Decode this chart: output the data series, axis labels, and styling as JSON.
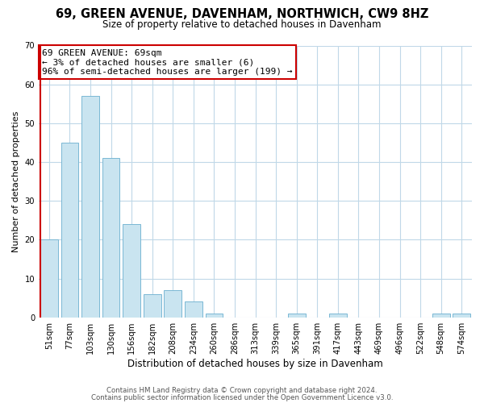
{
  "title": "69, GREEN AVENUE, DAVENHAM, NORTHWICH, CW9 8HZ",
  "subtitle": "Size of property relative to detached houses in Davenham",
  "xlabel": "Distribution of detached houses by size in Davenham",
  "ylabel": "Number of detached properties",
  "bar_labels": [
    "51sqm",
    "77sqm",
    "103sqm",
    "130sqm",
    "156sqm",
    "182sqm",
    "208sqm",
    "234sqm",
    "260sqm",
    "286sqm",
    "313sqm",
    "339sqm",
    "365sqm",
    "391sqm",
    "417sqm",
    "443sqm",
    "469sqm",
    "496sqm",
    "522sqm",
    "548sqm",
    "574sqm"
  ],
  "bar_values": [
    20,
    45,
    57,
    41,
    24,
    6,
    7,
    4,
    1,
    0,
    0,
    0,
    1,
    0,
    1,
    0,
    0,
    0,
    0,
    1,
    1
  ],
  "bar_color": "#c9e4f0",
  "bar_edge_color": "#7ab8d4",
  "highlight_color": "#cc0000",
  "annotation_text": "69 GREEN AVENUE: 69sqm\n← 3% of detached houses are smaller (6)\n96% of semi-detached houses are larger (199) →",
  "annotation_box_color": "#ffffff",
  "annotation_box_edge": "#cc0000",
  "ylim": [
    0,
    70
  ],
  "yticks": [
    0,
    10,
    20,
    30,
    40,
    50,
    60,
    70
  ],
  "footer_line1": "Contains HM Land Registry data © Crown copyright and database right 2024.",
  "footer_line2": "Contains public sector information licensed under the Open Government Licence v3.0.",
  "background_color": "#ffffff",
  "grid_color": "#c0d8e8",
  "title_fontsize": 10.5,
  "subtitle_fontsize": 8.5,
  "ylabel_fontsize": 8,
  "xlabel_fontsize": 8.5,
  "tick_fontsize": 7.2,
  "annot_fontsize": 8,
  "footer_fontsize": 6.2
}
